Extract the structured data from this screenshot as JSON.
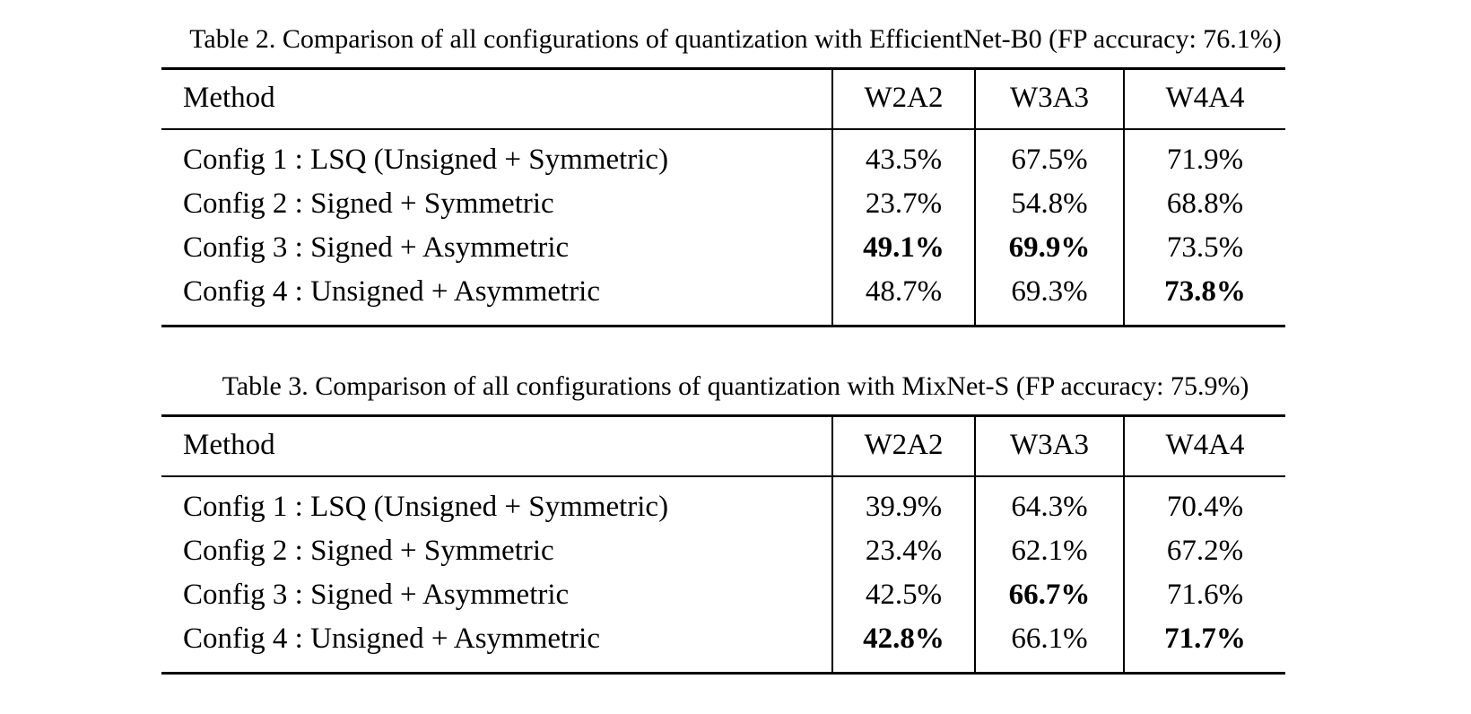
{
  "page": {
    "background": "#ffffff",
    "text_color": "#000000"
  },
  "tables": [
    {
      "caption": "Table 2. Comparison of all configurations of quantization with EfficientNet-B0 (FP accuracy: 76.1%)",
      "model": "EfficientNet-B0",
      "fp_accuracy": "76.1%",
      "columns": {
        "method": "Method",
        "w2a2": "W2A2",
        "w3a3": "W3A3",
        "w4a4": "W4A4"
      },
      "rows": [
        {
          "method": "Config 1 : LSQ (Unsigned + Symmetric)",
          "w2a2": {
            "text": "43.5%",
            "bold": false
          },
          "w3a3": {
            "text": "67.5%",
            "bold": false
          },
          "w4a4": {
            "text": "71.9%",
            "bold": false
          }
        },
        {
          "method": "Config 2 : Signed + Symmetric",
          "w2a2": {
            "text": "23.7%",
            "bold": false
          },
          "w3a3": {
            "text": "54.8%",
            "bold": false
          },
          "w4a4": {
            "text": "68.8%",
            "bold": false
          }
        },
        {
          "method": "Config 3 : Signed + Asymmetric",
          "w2a2": {
            "text": "49.1%",
            "bold": true
          },
          "w3a3": {
            "text": "69.9%",
            "bold": true
          },
          "w4a4": {
            "text": "73.5%",
            "bold": false
          }
        },
        {
          "method": "Config 4 : Unsigned + Asymmetric",
          "w2a2": {
            "text": "48.7%",
            "bold": false
          },
          "w3a3": {
            "text": "69.3%",
            "bold": false
          },
          "w4a4": {
            "text": "73.8%",
            "bold": true
          }
        }
      ]
    },
    {
      "caption": "Table 3. Comparison of all configurations of quantization with MixNet-S (FP accuracy: 75.9%)",
      "model": "MixNet-S",
      "fp_accuracy": "75.9%",
      "columns": {
        "method": "Method",
        "w2a2": "W2A2",
        "w3a3": "W3A3",
        "w4a4": "W4A4"
      },
      "rows": [
        {
          "method": "Config 1 : LSQ (Unsigned + Symmetric)",
          "w2a2": {
            "text": "39.9%",
            "bold": false
          },
          "w3a3": {
            "text": "64.3%",
            "bold": false
          },
          "w4a4": {
            "text": "70.4%",
            "bold": false
          }
        },
        {
          "method": "Config 2 : Signed + Symmetric",
          "w2a2": {
            "text": "23.4%",
            "bold": false
          },
          "w3a3": {
            "text": "62.1%",
            "bold": false
          },
          "w4a4": {
            "text": "67.2%",
            "bold": false
          }
        },
        {
          "method": "Config 3 : Signed + Asymmetric",
          "w2a2": {
            "text": "42.5%",
            "bold": false
          },
          "w3a3": {
            "text": "66.7%",
            "bold": true
          },
          "w4a4": {
            "text": "71.6%",
            "bold": false
          }
        },
        {
          "method": "Config 4 : Unsigned + Asymmetric",
          "w2a2": {
            "text": "42.8%",
            "bold": true
          },
          "w3a3": {
            "text": "66.1%",
            "bold": false
          },
          "w4a4": {
            "text": "71.7%",
            "bold": true
          }
        }
      ]
    }
  ]
}
